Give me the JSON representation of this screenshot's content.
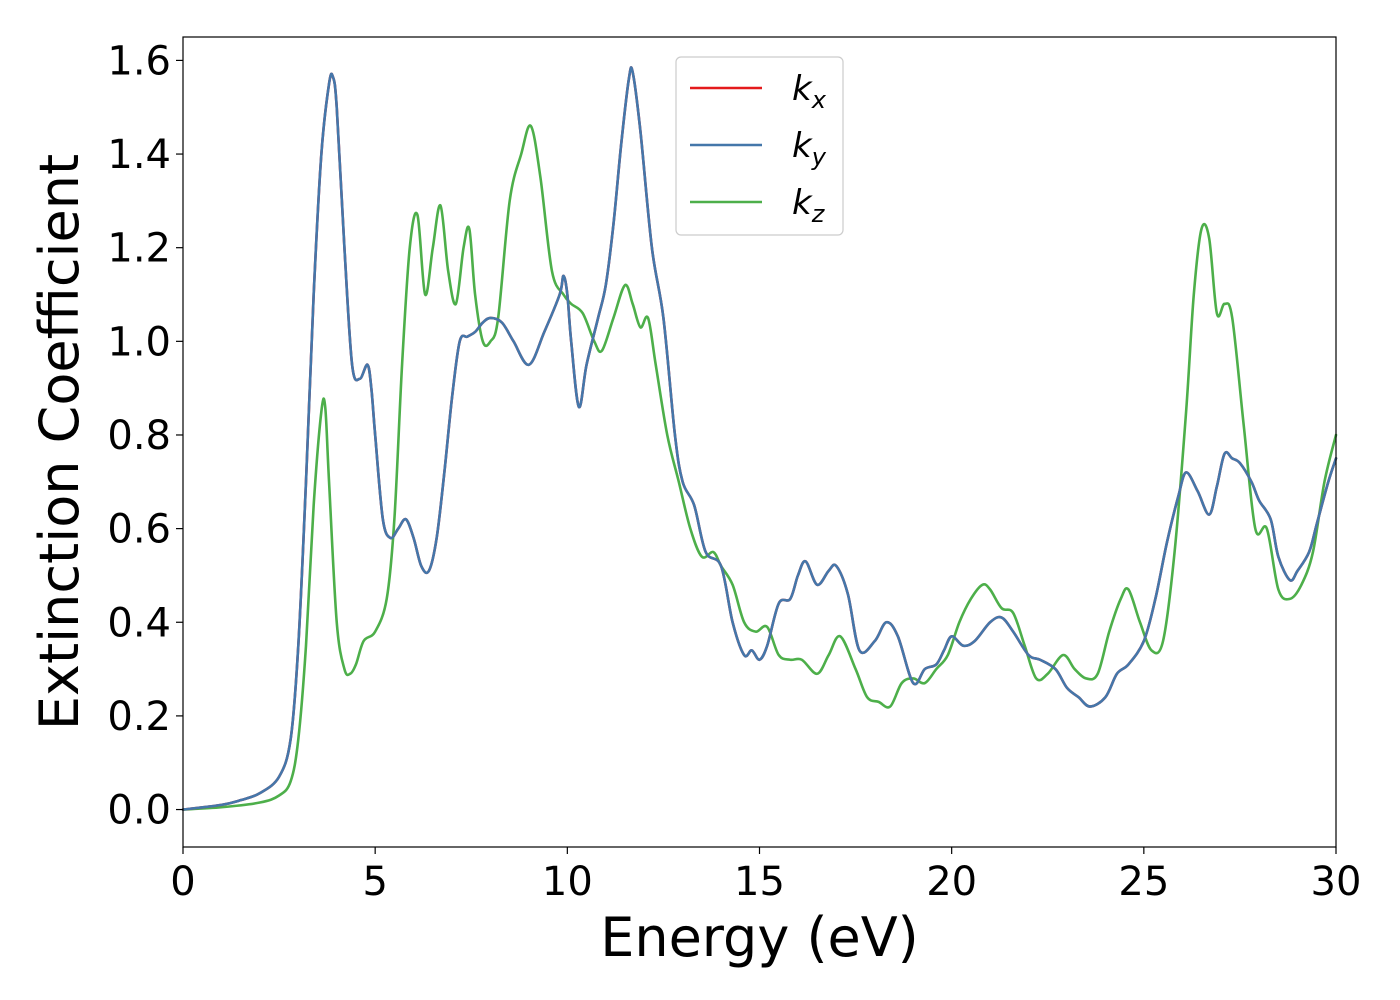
{
  "chart_data": {
    "type": "line",
    "xlabel": "Energy (eV)",
    "ylabel": "Extinction Coefficient",
    "xlim": [
      0,
      30
    ],
    "ylim": [
      -0.08,
      1.65
    ],
    "xticks": [
      0,
      5,
      10,
      15,
      20,
      25,
      30
    ],
    "yticks": [
      0.0,
      0.2,
      0.4,
      0.6,
      0.8,
      1.0,
      1.2,
      1.4,
      1.6
    ],
    "legend_position": "top-center",
    "grid": false,
    "series": [
      {
        "name": "k_x",
        "label_main": "k",
        "label_sub": "x",
        "color": "#e41a1c",
        "x": [
          0,
          1,
          1.5,
          2,
          2.5,
          2.8,
          3.0,
          3.2,
          3.4,
          3.6,
          3.8,
          3.9,
          4.0,
          4.2,
          4.4,
          4.6,
          4.8,
          4.9,
          5.0,
          5.2,
          5.4,
          5.6,
          5.8,
          6.0,
          6.2,
          6.4,
          6.6,
          6.8,
          7.0,
          7.2,
          7.4,
          7.6,
          7.8,
          8.0,
          8.3,
          8.6,
          9.0,
          9.4,
          9.8,
          9.9,
          10.0,
          10.1,
          10.3,
          10.5,
          10.8,
          11.0,
          11.2,
          11.4,
          11.6,
          11.7,
          11.9,
          12.2,
          12.5,
          12.8,
          13.0,
          13.3,
          13.6,
          14.0,
          14.3,
          14.6,
          14.8,
          15.0,
          15.2,
          15.5,
          15.8,
          16.0,
          16.2,
          16.5,
          16.8,
          17.0,
          17.3,
          17.6,
          18.0,
          18.3,
          18.6,
          19.0,
          19.3,
          19.6,
          19.8,
          20.0,
          20.3,
          20.6,
          21.0,
          21.3,
          21.6,
          22.0,
          22.3,
          22.7,
          23.0,
          23.3,
          23.6,
          24.0,
          24.3,
          24.6,
          25.0,
          25.3,
          25.6,
          25.9,
          26.1,
          26.4,
          26.7,
          26.9,
          27.1,
          27.3,
          27.5,
          27.8,
          28.0,
          28.3,
          28.5,
          28.8,
          29.0,
          29.3,
          29.5,
          29.8,
          30.0
        ],
        "y": [
          0.0,
          0.01,
          0.02,
          0.035,
          0.07,
          0.15,
          0.35,
          0.7,
          1.1,
          1.4,
          1.55,
          1.565,
          1.5,
          1.2,
          0.95,
          0.92,
          0.95,
          0.9,
          0.8,
          0.62,
          0.58,
          0.6,
          0.62,
          0.58,
          0.52,
          0.51,
          0.58,
          0.72,
          0.88,
          1.0,
          1.01,
          1.02,
          1.04,
          1.05,
          1.04,
          1.0,
          0.95,
          1.02,
          1.1,
          1.14,
          1.1,
          1.0,
          0.86,
          0.95,
          1.05,
          1.12,
          1.25,
          1.42,
          1.56,
          1.575,
          1.45,
          1.2,
          1.05,
          0.8,
          0.7,
          0.65,
          0.55,
          0.52,
          0.4,
          0.33,
          0.34,
          0.32,
          0.35,
          0.44,
          0.45,
          0.5,
          0.53,
          0.48,
          0.51,
          0.52,
          0.46,
          0.34,
          0.36,
          0.4,
          0.37,
          0.27,
          0.3,
          0.31,
          0.34,
          0.37,
          0.35,
          0.36,
          0.4,
          0.41,
          0.38,
          0.33,
          0.32,
          0.3,
          0.26,
          0.24,
          0.22,
          0.24,
          0.29,
          0.31,
          0.36,
          0.45,
          0.57,
          0.67,
          0.72,
          0.68,
          0.63,
          0.69,
          0.76,
          0.75,
          0.74,
          0.7,
          0.66,
          0.62,
          0.54,
          0.49,
          0.51,
          0.55,
          0.61,
          0.7,
          0.75
        ]
      },
      {
        "name": "k_y",
        "label_main": "k",
        "label_sub": "y",
        "color": "#4477aa",
        "x": [
          0,
          1,
          1.5,
          2,
          2.5,
          2.8,
          3.0,
          3.2,
          3.4,
          3.6,
          3.8,
          3.9,
          4.0,
          4.2,
          4.4,
          4.6,
          4.8,
          4.9,
          5.0,
          5.2,
          5.4,
          5.6,
          5.8,
          6.0,
          6.2,
          6.4,
          6.6,
          6.8,
          7.0,
          7.2,
          7.4,
          7.6,
          7.8,
          8.0,
          8.3,
          8.6,
          9.0,
          9.4,
          9.8,
          9.9,
          10.0,
          10.1,
          10.3,
          10.5,
          10.8,
          11.0,
          11.2,
          11.4,
          11.6,
          11.7,
          11.9,
          12.2,
          12.5,
          12.8,
          13.0,
          13.3,
          13.6,
          14.0,
          14.3,
          14.6,
          14.8,
          15.0,
          15.2,
          15.5,
          15.8,
          16.0,
          16.2,
          16.5,
          16.8,
          17.0,
          17.3,
          17.6,
          18.0,
          18.3,
          18.6,
          19.0,
          19.3,
          19.6,
          19.8,
          20.0,
          20.3,
          20.6,
          21.0,
          21.3,
          21.6,
          22.0,
          22.3,
          22.7,
          23.0,
          23.3,
          23.6,
          24.0,
          24.3,
          24.6,
          25.0,
          25.3,
          25.6,
          25.9,
          26.1,
          26.4,
          26.7,
          26.9,
          27.1,
          27.3,
          27.5,
          27.8,
          28.0,
          28.3,
          28.5,
          28.8,
          29.0,
          29.3,
          29.5,
          29.8,
          30.0
        ],
        "y": [
          0.0,
          0.01,
          0.02,
          0.035,
          0.07,
          0.15,
          0.35,
          0.7,
          1.1,
          1.4,
          1.55,
          1.565,
          1.5,
          1.2,
          0.95,
          0.92,
          0.95,
          0.9,
          0.8,
          0.62,
          0.58,
          0.6,
          0.62,
          0.58,
          0.52,
          0.51,
          0.58,
          0.72,
          0.88,
          1.0,
          1.01,
          1.02,
          1.04,
          1.05,
          1.04,
          1.0,
          0.95,
          1.02,
          1.1,
          1.14,
          1.1,
          1.0,
          0.86,
          0.95,
          1.05,
          1.12,
          1.25,
          1.42,
          1.56,
          1.575,
          1.45,
          1.2,
          1.05,
          0.8,
          0.7,
          0.65,
          0.55,
          0.52,
          0.4,
          0.33,
          0.34,
          0.32,
          0.35,
          0.44,
          0.45,
          0.5,
          0.53,
          0.48,
          0.51,
          0.52,
          0.46,
          0.34,
          0.36,
          0.4,
          0.37,
          0.27,
          0.3,
          0.31,
          0.34,
          0.37,
          0.35,
          0.36,
          0.4,
          0.41,
          0.38,
          0.33,
          0.32,
          0.3,
          0.26,
          0.24,
          0.22,
          0.24,
          0.29,
          0.31,
          0.36,
          0.45,
          0.57,
          0.67,
          0.72,
          0.68,
          0.63,
          0.69,
          0.76,
          0.75,
          0.74,
          0.7,
          0.66,
          0.62,
          0.54,
          0.49,
          0.51,
          0.55,
          0.61,
          0.7,
          0.75
        ]
      },
      {
        "name": "k_z",
        "label_main": "k",
        "label_sub": "z",
        "color": "#4daf4a",
        "x": [
          0,
          1,
          2,
          2.5,
          2.8,
          3.0,
          3.2,
          3.4,
          3.6,
          3.7,
          3.8,
          4.0,
          4.2,
          4.35,
          4.5,
          4.7,
          5.0,
          5.3,
          5.5,
          5.7,
          5.9,
          6.1,
          6.3,
          6.5,
          6.7,
          6.9,
          7.1,
          7.3,
          7.45,
          7.6,
          7.8,
          8.0,
          8.2,
          8.5,
          8.8,
          9.05,
          9.3,
          9.6,
          9.9,
          10.1,
          10.4,
          10.7,
          10.9,
          11.2,
          11.5,
          11.7,
          11.9,
          12.1,
          12.3,
          12.6,
          12.9,
          13.2,
          13.5,
          13.8,
          14.0,
          14.3,
          14.6,
          14.9,
          15.2,
          15.5,
          15.8,
          16.1,
          16.5,
          16.8,
          17.1,
          17.5,
          17.8,
          18.1,
          18.4,
          18.7,
          19.0,
          19.3,
          19.6,
          19.9,
          20.2,
          20.5,
          20.8,
          21.0,
          21.3,
          21.6,
          21.9,
          22.2,
          22.5,
          22.9,
          23.2,
          23.5,
          23.8,
          24.1,
          24.4,
          24.6,
          24.9,
          25.2,
          25.5,
          25.8,
          26.1,
          26.3,
          26.5,
          26.7,
          26.9,
          27.1,
          27.3,
          27.6,
          27.9,
          28.2,
          28.5,
          28.8,
          29.1,
          29.4,
          29.7,
          30.0
        ],
        "y": [
          0.0,
          0.005,
          0.015,
          0.03,
          0.06,
          0.15,
          0.35,
          0.65,
          0.85,
          0.86,
          0.7,
          0.4,
          0.3,
          0.29,
          0.31,
          0.36,
          0.38,
          0.45,
          0.62,
          0.95,
          1.2,
          1.27,
          1.1,
          1.2,
          1.29,
          1.15,
          1.08,
          1.2,
          1.24,
          1.1,
          1.0,
          1.0,
          1.05,
          1.3,
          1.4,
          1.46,
          1.35,
          1.15,
          1.1,
          1.08,
          1.06,
          1.0,
          0.98,
          1.05,
          1.12,
          1.08,
          1.03,
          1.05,
          0.95,
          0.8,
          0.7,
          0.6,
          0.54,
          0.55,
          0.52,
          0.48,
          0.4,
          0.38,
          0.39,
          0.33,
          0.32,
          0.32,
          0.29,
          0.33,
          0.37,
          0.3,
          0.24,
          0.23,
          0.22,
          0.27,
          0.28,
          0.27,
          0.3,
          0.33,
          0.4,
          0.45,
          0.48,
          0.47,
          0.43,
          0.42,
          0.35,
          0.28,
          0.29,
          0.33,
          0.3,
          0.28,
          0.29,
          0.38,
          0.45,
          0.47,
          0.4,
          0.34,
          0.36,
          0.55,
          0.85,
          1.1,
          1.24,
          1.22,
          1.06,
          1.08,
          1.05,
          0.82,
          0.6,
          0.6,
          0.47,
          0.45,
          0.48,
          0.55,
          0.7,
          0.8
        ]
      }
    ]
  }
}
